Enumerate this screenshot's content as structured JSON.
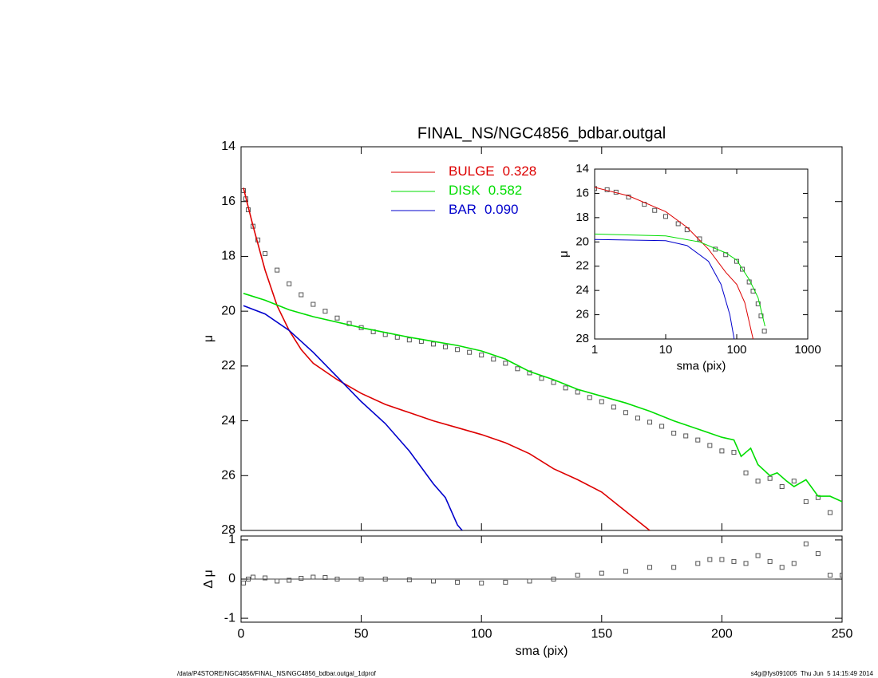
{
  "chart_data": [
    {
      "type": "line",
      "title": "FINAL_NS/NGC4856_bdbar.outgal",
      "ylabel": "μ",
      "xlim": [
        0,
        250
      ],
      "xticks": [
        0,
        50,
        100,
        150,
        200,
        250
      ],
      "xtick_labels": false,
      "ylim": [
        28,
        14
      ],
      "yticks": [
        14,
        16,
        18,
        20,
        22,
        24,
        26,
        28
      ],
      "legend": true,
      "series": [
        {
          "color": "#555555",
          "marker": "square",
          "x": [
            1,
            2,
            3,
            5,
            7,
            10,
            15,
            20,
            25,
            30,
            35,
            40,
            45,
            50,
            55,
            60,
            65,
            70,
            75,
            80,
            85,
            90,
            95,
            100,
            105,
            110,
            115,
            120,
            125,
            130,
            135,
            140,
            145,
            150,
            155,
            160,
            165,
            170,
            175,
            180,
            185,
            190,
            195,
            200,
            205,
            210,
            215,
            220,
            225,
            230,
            235,
            240,
            245
          ],
          "values": [
            15.6,
            15.9,
            16.3,
            16.9,
            17.4,
            17.9,
            18.5,
            19.0,
            19.4,
            19.75,
            20.0,
            20.25,
            20.45,
            20.6,
            20.75,
            20.85,
            20.95,
            21.05,
            21.1,
            21.2,
            21.3,
            21.4,
            21.5,
            21.6,
            21.75,
            21.9,
            22.1,
            22.25,
            22.45,
            22.6,
            22.8,
            22.95,
            23.15,
            23.3,
            23.5,
            23.7,
            23.9,
            24.05,
            24.2,
            24.45,
            24.55,
            24.7,
            24.9,
            25.1,
            25.15,
            25.9,
            26.2,
            26.1,
            26.4,
            26.2,
            26.95,
            26.8,
            27.35
          ]
        },
        {
          "name": "BULGE",
          "fraction": {
            "value": 0.328,
            "label": "0.328"
          },
          "color": "#dd0000",
          "x": [
            1,
            3,
            5,
            10,
            15,
            20,
            25,
            30,
            40,
            50,
            60,
            70,
            80,
            90,
            100,
            110,
            120,
            130,
            140,
            150,
            160,
            170
          ],
          "values": [
            15.5,
            16.2,
            16.9,
            18.5,
            19.8,
            20.7,
            21.4,
            21.9,
            22.5,
            23.0,
            23.4,
            23.7,
            24.0,
            24.25,
            24.5,
            24.8,
            25.2,
            25.75,
            26.15,
            26.6,
            27.3,
            28.0
          ]
        },
        {
          "name": "DISK",
          "fraction": {
            "value": 0.582,
            "label": "0.582"
          },
          "color": "#00dd00",
          "x": [
            1,
            10,
            20,
            30,
            50,
            70,
            90,
            100,
            110,
            120,
            130,
            140,
            150,
            160,
            170,
            180,
            190,
            200,
            205,
            208,
            212,
            215,
            220,
            223,
            227,
            230,
            235,
            240,
            245,
            250
          ],
          "values": [
            19.35,
            19.6,
            19.95,
            20.2,
            20.6,
            20.95,
            21.25,
            21.45,
            21.75,
            22.2,
            22.5,
            22.85,
            23.1,
            23.35,
            23.65,
            24.0,
            24.3,
            24.6,
            24.7,
            25.3,
            25.0,
            25.6,
            26.0,
            25.9,
            26.2,
            26.4,
            26.15,
            26.75,
            26.75,
            26.95
          ]
        },
        {
          "name": "BAR",
          "fraction": {
            "value": 0.09,
            "label": "0.090"
          },
          "color": "#0000cc",
          "x": [
            1,
            10,
            20,
            30,
            40,
            50,
            60,
            70,
            80,
            85,
            90,
            92
          ],
          "values": [
            19.8,
            20.1,
            20.7,
            21.5,
            22.4,
            23.3,
            24.1,
            25.1,
            26.3,
            26.8,
            27.8,
            28.0
          ]
        }
      ]
    },
    {
      "type": "line",
      "xlabel": "sma (pix)",
      "ylabel": "μ",
      "xscale": "log",
      "xlim": [
        1,
        1000
      ],
      "xticks": [
        1,
        10,
        100,
        1000
      ],
      "ylim": [
        28,
        14
      ],
      "yticks": [
        14,
        16,
        18,
        20,
        22,
        24,
        26,
        28
      ],
      "series": [
        {
          "color": "#555555",
          "marker": "square",
          "x": [
            1,
            1.5,
            2,
            3,
            5,
            7,
            10,
            15,
            20,
            30,
            50,
            70,
            100,
            120,
            150,
            170,
            200,
            220,
            245
          ],
          "values": [
            15.6,
            15.7,
            15.9,
            16.3,
            16.9,
            17.4,
            17.9,
            18.5,
            19.0,
            19.75,
            20.6,
            21.05,
            21.6,
            22.25,
            23.3,
            24.05,
            25.1,
            26.1,
            27.35
          ]
        },
        {
          "color": "#dd0000",
          "x": [
            1,
            3,
            10,
            20,
            40,
            70,
            100,
            130,
            170
          ],
          "values": [
            15.5,
            16.2,
            17.5,
            18.8,
            20.6,
            22.5,
            23.5,
            25.0,
            28.0
          ]
        },
        {
          "color": "#00dd00",
          "x": [
            1,
            10,
            30,
            70,
            100,
            150,
            200,
            250
          ],
          "values": [
            19.35,
            19.5,
            20.0,
            20.9,
            21.5,
            23.1,
            24.6,
            26.95
          ]
        },
        {
          "color": "#0000cc",
          "x": [
            1,
            10,
            20,
            40,
            60,
            80,
            92
          ],
          "values": [
            19.8,
            19.9,
            20.3,
            21.6,
            23.5,
            26.0,
            28.0
          ]
        }
      ]
    },
    {
      "type": "line",
      "xlabel": "sma (pix)",
      "ylabel": "Δ μ",
      "xlim": [
        0,
        250
      ],
      "xticks": [
        0,
        50,
        100,
        150,
        200,
        250
      ],
      "ylim": [
        -1.1,
        1.1
      ],
      "yticks": [
        -1,
        0,
        1
      ],
      "hline": 0,
      "series": [
        {
          "color": "#555555",
          "marker": "square",
          "x": [
            1,
            3,
            5,
            10,
            15,
            20,
            25,
            30,
            35,
            40,
            50,
            60,
            70,
            80,
            90,
            100,
            110,
            120,
            130,
            140,
            150,
            160,
            170,
            180,
            190,
            195,
            200,
            205,
            210,
            215,
            220,
            225,
            230,
            235,
            240,
            245,
            250
          ],
          "values": [
            -0.1,
            0.0,
            0.05,
            0.03,
            -0.05,
            -0.03,
            0.02,
            0.05,
            0.04,
            0.0,
            0.0,
            0.0,
            -0.02,
            -0.05,
            -0.08,
            -0.1,
            -0.08,
            -0.05,
            0.0,
            0.1,
            0.15,
            0.2,
            0.3,
            0.3,
            0.4,
            0.5,
            0.5,
            0.45,
            0.4,
            0.6,
            0.45,
            0.3,
            0.4,
            0.9,
            0.65,
            0.1,
            0.1
          ]
        }
      ]
    }
  ],
  "footer": {
    "left": "/data/P4STORE/NGC4856/FINAL_NS/NGC4856_bdbar.outgal_1dprof",
    "right": "s4g@fys091005  Thu Jun  5 14:15:49 2014"
  }
}
